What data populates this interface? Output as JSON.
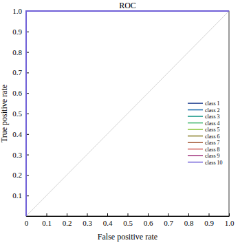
{
  "chart_data": {
    "type": "line",
    "title": "ROC",
    "x_label": "False positive rate",
    "y_label": "True positive rate",
    "xlim": [
      0,
      1
    ],
    "ylim": [
      0,
      1
    ],
    "xticks": [
      0,
      0.1,
      0.2,
      0.3,
      0.4,
      0.5,
      0.6,
      0.7,
      0.8,
      0.9,
      {
        "value": 1,
        "label": "1.0"
      }
    ],
    "yticks": [
      0.1,
      0.2,
      0.3,
      0.4,
      0.5,
      0.6,
      0.7,
      0.8,
      0.9,
      {
        "value": 1,
        "label": "1.0"
      }
    ],
    "grid": false,
    "legend": "right",
    "reference_line": {
      "x": [
        0,
        1
      ],
      "values": [
        0,
        1
      ],
      "color": "#d4d4d4"
    },
    "series": [
      {
        "name": "class 1",
        "color": "#1f3f8f",
        "x": [
          0,
          0,
          1
        ],
        "values": [
          0,
          1,
          1
        ]
      },
      {
        "name": "class 2",
        "color": "#1f6fb0",
        "x": [
          0,
          0,
          1
        ],
        "values": [
          0,
          1,
          1
        ]
      },
      {
        "name": "class 3",
        "color": "#1a9a8a",
        "x": [
          0,
          0,
          1
        ],
        "values": [
          0,
          1,
          1
        ]
      },
      {
        "name": "class 4",
        "color": "#3cb36a",
        "x": [
          0,
          0,
          1
        ],
        "values": [
          0,
          1,
          1
        ]
      },
      {
        "name": "class 5",
        "color": "#8cc63f",
        "x": [
          0,
          0,
          1
        ],
        "values": [
          0,
          1,
          1
        ]
      },
      {
        "name": "class 6",
        "color": "#8a7f2a",
        "x": [
          0,
          0,
          1
        ],
        "values": [
          0,
          1,
          1
        ]
      },
      {
        "name": "class 7",
        "color": "#a0522d",
        "x": [
          0,
          0,
          1
        ],
        "values": [
          0,
          1,
          1
        ]
      },
      {
        "name": "class 8",
        "color": "#d0605a",
        "x": [
          0,
          0,
          1
        ],
        "values": [
          0,
          1,
          1
        ]
      },
      {
        "name": "class 9",
        "color": "#a0307a",
        "x": [
          0,
          0,
          1
        ],
        "values": [
          0,
          1,
          1
        ]
      },
      {
        "name": "class 10",
        "color": "#7060d8",
        "x": [
          0,
          0,
          1
        ],
        "values": [
          0,
          1,
          1
        ]
      }
    ]
  }
}
